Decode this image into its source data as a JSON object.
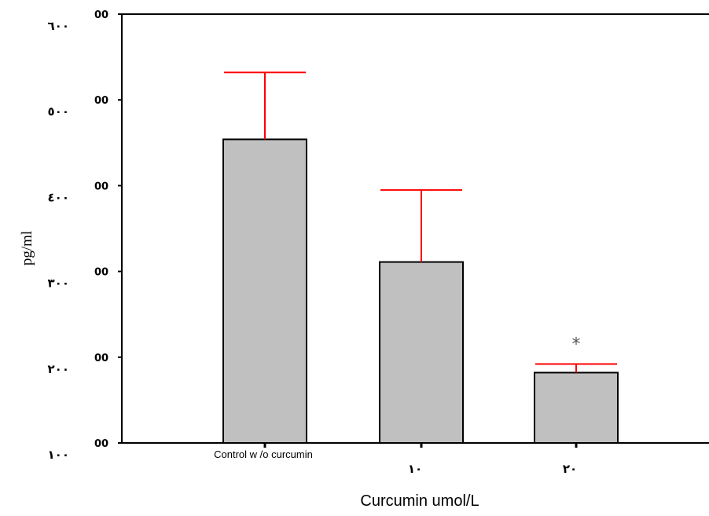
{
  "chart_data": {
    "type": "bar",
    "xlabel": "Curcumin umol/L",
    "ylabel": "pg/ml",
    "ylim": [
      100,
      600
    ],
    "y_ticks": [
      {
        "value": 600,
        "label": "٦٠٠",
        "suffix": "00"
      },
      {
        "value": 500,
        "label": "٥٠٠",
        "suffix": "00"
      },
      {
        "value": 400,
        "label": "٤٠٠",
        "suffix": "00"
      },
      {
        "value": 300,
        "label": "٣٠٠",
        "suffix": "00"
      },
      {
        "value": 200,
        "label": "٢٠٠",
        "suffix": "00"
      },
      {
        "value": 100,
        "label": "١٠٠",
        "suffix": "00"
      }
    ],
    "categories": [
      "Control w /o curcumin",
      "١٠",
      "٢٠"
    ],
    "values": [
      454,
      311,
      182
    ],
    "error_upper": [
      532,
      395,
      192
    ],
    "bar_color": "#c0c0c0",
    "error_color": "#ff0000",
    "annotations": [
      {
        "category_index": 2,
        "text": "*"
      }
    ],
    "grid": false
  }
}
